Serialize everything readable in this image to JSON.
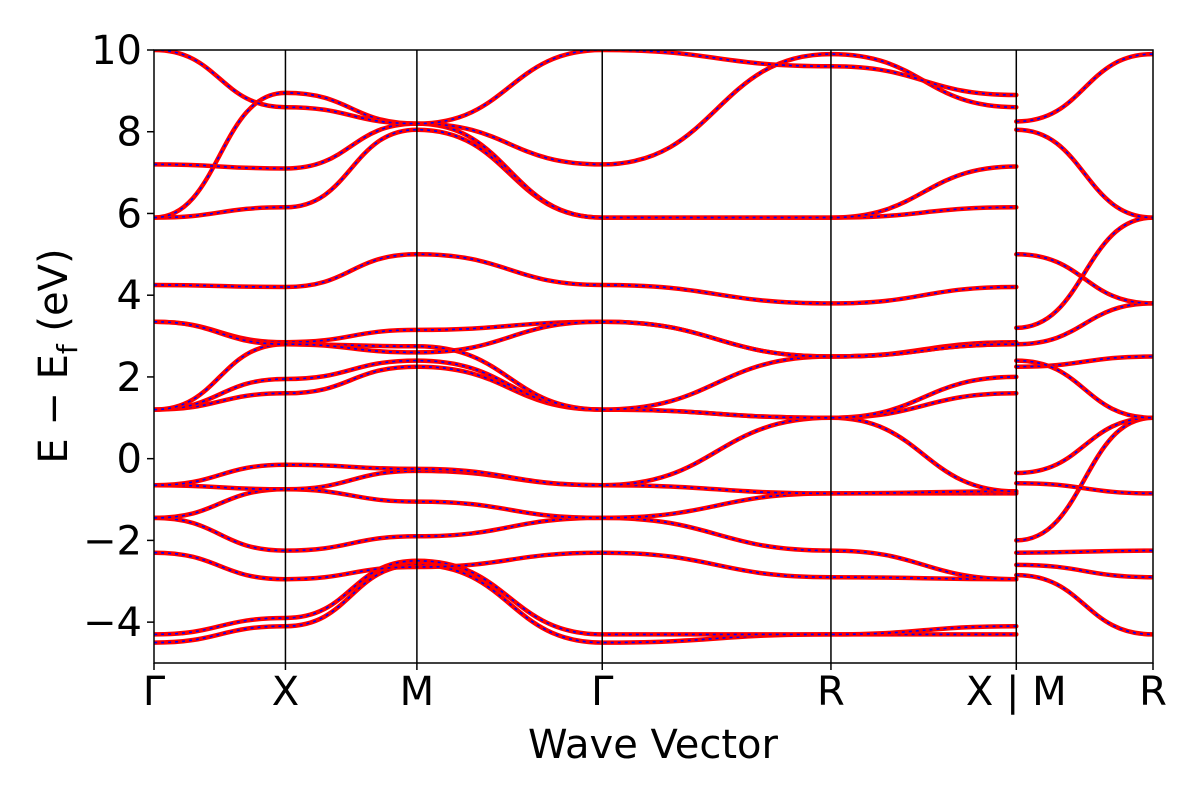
{
  "chart_data": {
    "type": "line",
    "title": "",
    "xlabel": "Wave Vector",
    "ylabel": "E − E_f (eV)",
    "ylabel_parts": {
      "main": "E  −  E",
      "sub": "f",
      "unit": " (eV)"
    },
    "ylim": [
      -5,
      10
    ],
    "yticks": [
      {
        "value": -4,
        "label": "−4"
      },
      {
        "value": -2,
        "label": "−2"
      },
      {
        "value": 0,
        "label": "0"
      },
      {
        "value": 2,
        "label": "2"
      },
      {
        "value": 4,
        "label": "4"
      },
      {
        "value": 6,
        "label": "6"
      },
      {
        "value": 8,
        "label": "8"
      },
      {
        "value": 10,
        "label": "10"
      }
    ],
    "xlim": [
      0,
      7.6
    ],
    "kpoints": [
      {
        "label": "Γ",
        "x": 0
      },
      {
        "label": "X",
        "x": 1
      },
      {
        "label": "M",
        "x": 2
      },
      {
        "label": "Γ",
        "x": 3.41
      },
      {
        "label": "R",
        "x": 5.15
      },
      {
        "label": "X | M",
        "x": 6.56
      },
      {
        "label": "R",
        "x": 7.6
      }
    ],
    "grid": false,
    "legend": "none",
    "colors": {
      "band_outer": "#ff0000",
      "band_inner": "#0000ff",
      "axes": "#000000"
    },
    "bands": [
      {
        "x": [
          0,
          1,
          2,
          3.41,
          5.15,
          6.56
        ],
        "y": [
          -4.5,
          -4.1,
          -2.6,
          -4.5,
          -4.3,
          -4.3
        ]
      },
      {
        "x": [
          0,
          1,
          2,
          3.41,
          5.15,
          6.56
        ],
        "y": [
          -4.3,
          -3.9,
          -2.5,
          -4.3,
          -4.3,
          -4.1
        ]
      },
      {
        "x": [
          0,
          1,
          2,
          3.41,
          5.15,
          6.56
        ],
        "y": [
          -2.3,
          -2.95,
          -2.65,
          -2.3,
          -2.9,
          -2.95
        ]
      },
      {
        "x": [
          0,
          1,
          2,
          3.41,
          5.15,
          6.56
        ],
        "y": [
          -1.45,
          -2.25,
          -1.9,
          -1.45,
          -2.25,
          -2.95
        ]
      },
      {
        "x": [
          0,
          1,
          2,
          3.41,
          5.15,
          6.56
        ],
        "y": [
          -1.45,
          -0.75,
          -1.05,
          -1.45,
          -0.85,
          -0.85
        ]
      },
      {
        "x": [
          0,
          1,
          2,
          3.41,
          5.15,
          6.56
        ],
        "y": [
          -0.65,
          -0.75,
          -0.3,
          -0.65,
          -0.85,
          -0.8
        ]
      },
      {
        "x": [
          0,
          1,
          2,
          3.41,
          5.15,
          6.56
        ],
        "y": [
          -0.65,
          -0.15,
          -0.25,
          -0.65,
          1.0,
          -0.8
        ]
      },
      {
        "x": [
          0,
          1,
          2,
          3.41,
          5.15,
          6.56
        ],
        "y": [
          1.2,
          1.6,
          2.25,
          1.2,
          1.0,
          1.6
        ]
      },
      {
        "x": [
          0,
          1,
          2,
          3.41,
          5.15,
          6.56
        ],
        "y": [
          1.2,
          1.95,
          2.4,
          1.2,
          1.0,
          2.0
        ]
      },
      {
        "x": [
          0,
          1,
          2,
          3.41,
          5.15,
          6.56
        ],
        "y": [
          1.2,
          2.8,
          2.75,
          1.2,
          2.5,
          2.8
        ]
      },
      {
        "x": [
          0,
          1,
          2,
          3.41,
          5.15,
          6.56
        ],
        "y": [
          3.35,
          2.85,
          3.15,
          3.35,
          2.5,
          2.85
        ]
      },
      {
        "x": [
          0,
          1,
          2,
          3.41,
          5.15,
          6.56
        ],
        "y": [
          3.35,
          2.8,
          2.6,
          3.35,
          2.5,
          2.8
        ]
      },
      {
        "x": [
          0,
          1,
          2,
          3.41,
          5.15,
          6.56
        ],
        "y": [
          4.25,
          4.2,
          5.0,
          4.25,
          3.8,
          4.2
        ]
      },
      {
        "x": [
          0,
          1,
          2,
          3.41,
          5.15,
          6.56
        ],
        "y": [
          5.9,
          6.15,
          8.05,
          5.9,
          5.9,
          6.15
        ]
      },
      {
        "x": [
          0,
          1,
          2,
          3.41,
          5.15,
          6.56
        ],
        "y": [
          5.9,
          8.95,
          8.2,
          5.9,
          5.9,
          7.15
        ]
      },
      {
        "x": [
          0,
          1,
          2,
          3.41,
          5.15,
          6.56
        ],
        "y": [
          7.2,
          7.1,
          8.2,
          7.2,
          9.9,
          8.6
        ]
      },
      {
        "x": [
          0,
          1,
          2,
          3.41,
          5.15,
          6.56
        ],
        "y": [
          10.0,
          8.6,
          8.2,
          10.0,
          9.6,
          8.9
        ]
      },
      {
        "x": [
          6.56,
          7.6
        ],
        "y": [
          -2.85,
          -4.3
        ]
      },
      {
        "x": [
          6.56,
          7.6
        ],
        "y": [
          -2.6,
          -2.9
        ]
      },
      {
        "x": [
          6.56,
          7.6
        ],
        "y": [
          -2.3,
          -2.25
        ]
      },
      {
        "x": [
          6.56,
          7.6
        ],
        "y": [
          -2.0,
          1.0
        ]
      },
      {
        "x": [
          6.56,
          7.6
        ],
        "y": [
          -0.6,
          -0.85
        ]
      },
      {
        "x": [
          6.56,
          7.6
        ],
        "y": [
          -0.35,
          1.0
        ]
      },
      {
        "x": [
          6.56,
          7.6
        ],
        "y": [
          2.25,
          2.5
        ]
      },
      {
        "x": [
          6.56,
          7.6
        ],
        "y": [
          2.4,
          1.0
        ]
      },
      {
        "x": [
          6.56,
          7.6
        ],
        "y": [
          2.8,
          3.8
        ]
      },
      {
        "x": [
          6.56,
          7.6
        ],
        "y": [
          5.0,
          3.8
        ]
      },
      {
        "x": [
          6.56,
          7.6
        ],
        "y": [
          3.2,
          5.9
        ]
      },
      {
        "x": [
          6.56,
          7.6
        ],
        "y": [
          8.05,
          5.9
        ]
      },
      {
        "x": [
          6.56,
          7.6
        ],
        "y": [
          8.25,
          9.9
        ]
      }
    ]
  }
}
